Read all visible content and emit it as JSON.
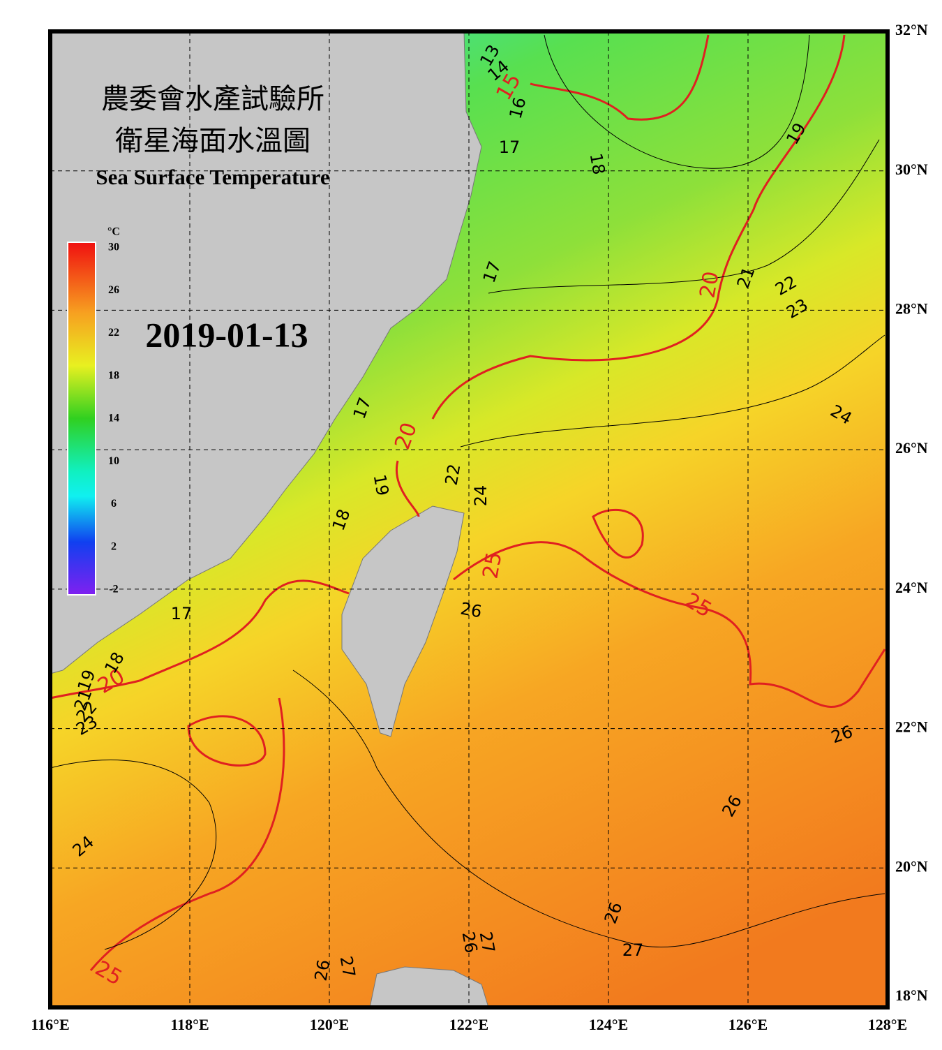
{
  "header": {
    "title_lines": [
      "農委會水產試驗所",
      "衛星海面水溫圖"
    ],
    "subtitle": "Sea Surface Temperature",
    "date": "2019-01-13"
  },
  "colorbar": {
    "unit": "°C",
    "ticks": [
      30,
      26,
      22,
      18,
      14,
      10,
      6,
      2,
      -2
    ]
  },
  "map": {
    "lat_labels": [
      "32°N",
      "30°N",
      "28°N",
      "26°N",
      "24°N",
      "22°N",
      "20°N",
      "18°N"
    ],
    "lon_labels": [
      "116°E",
      "118°E",
      "120°E",
      "122°E",
      "124°E",
      "126°E",
      "128°E"
    ]
  },
  "contours": {
    "labels": [
      "13",
      "14",
      "15",
      "16",
      "17",
      "18",
      "19",
      "17",
      "20",
      "21",
      "22",
      "23",
      "24",
      "17",
      "20",
      "19",
      "18",
      "17",
      "22",
      "24",
      "25",
      "26",
      "25",
      "20",
      "19",
      "18",
      "23",
      "22",
      "21",
      "26",
      "26",
      "24",
      "26",
      "27",
      "27",
      "26",
      "26",
      "27",
      "25"
    ]
  }
}
